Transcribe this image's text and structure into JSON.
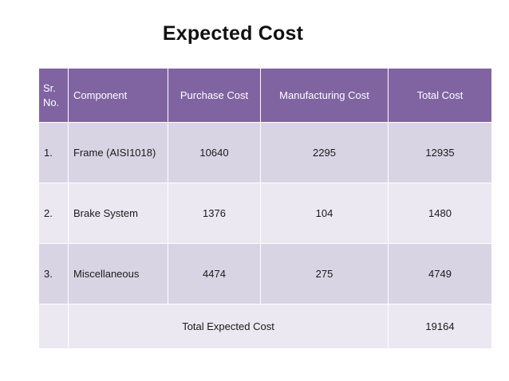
{
  "title": "Expected Cost",
  "table": {
    "headers": {
      "sr_line1": "Sr.",
      "sr_line2": "No.",
      "component": "Component",
      "purchase": "Purchase Cost",
      "manufacturing": "Manufacturing Cost",
      "total": "Total Cost"
    },
    "rows": [
      {
        "sr": "1.",
        "component": "Frame (AISI1018)",
        "purchase": "10640",
        "manufacturing": "2295",
        "total": "12935"
      },
      {
        "sr": "2.",
        "component": "Brake System",
        "purchase": "1376",
        "manufacturing": "104",
        "total": "1480"
      },
      {
        "sr": "3.",
        "component": "Miscellaneous",
        "purchase": "4474",
        "manufacturing": "275",
        "total": "4749"
      }
    ],
    "summary": {
      "label": "Total Expected Cost",
      "value": "19164"
    }
  },
  "colors": {
    "header_bg": "#8064a2",
    "row_dark": "#d9d4e4",
    "row_light": "#ebe8f1"
  }
}
